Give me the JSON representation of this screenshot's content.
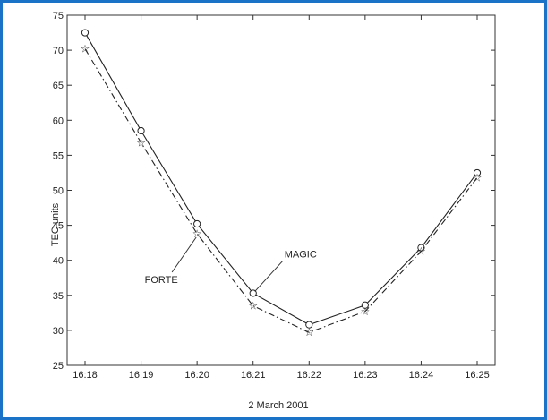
{
  "frame_color": "#1a73c7",
  "chart_data": {
    "type": "line",
    "xlabel": "2 March 2001",
    "ylabel": "TEC units",
    "categories": [
      "16:18",
      "16:19",
      "16:20",
      "16:21",
      "16:22",
      "16:23",
      "16:24",
      "16:25"
    ],
    "ylim": [
      25,
      75
    ],
    "yticks": [
      25,
      30,
      35,
      40,
      45,
      50,
      55,
      60,
      65,
      70,
      75
    ],
    "grid": false,
    "series": [
      {
        "name": "MAGIC",
        "style": "solid",
        "marker": "circle",
        "color": "#222222",
        "values": [
          72.5,
          58.5,
          45.2,
          35.3,
          30.8,
          33.6,
          41.8,
          52.5
        ]
      },
      {
        "name": "FORTE",
        "style": "dash-dot",
        "marker": "star",
        "color": "#222222",
        "values": [
          70.2,
          56.8,
          43.8,
          33.5,
          29.7,
          32.7,
          41.3,
          51.8
        ]
      }
    ],
    "annotations": [
      {
        "text": "MAGIC",
        "series": 0,
        "point": 3
      },
      {
        "text": "FORTE",
        "series": 1,
        "point": 2
      }
    ]
  }
}
